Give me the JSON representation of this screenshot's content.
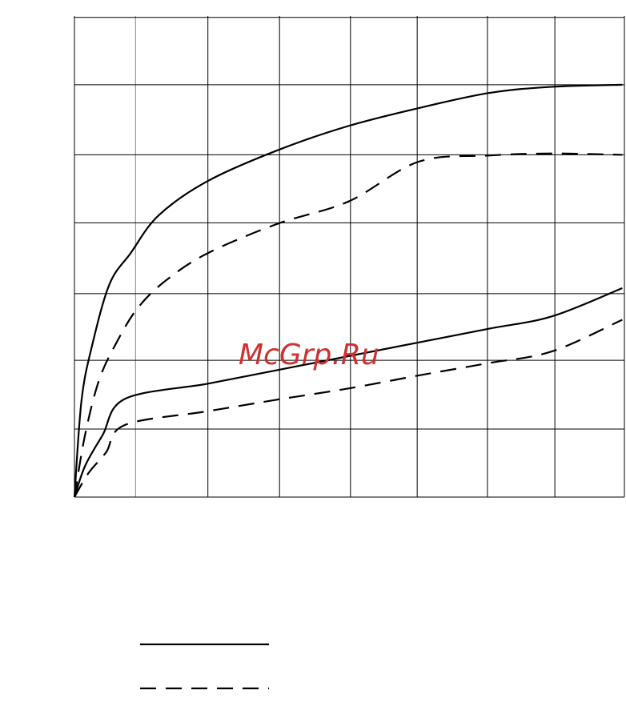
{
  "watermark": "McGrp.Ru",
  "chart_data": {
    "type": "line",
    "title": "",
    "xlabel": "",
    "ylabel": "",
    "xlim": [
      0,
      8
    ],
    "ylim": [
      0,
      7
    ],
    "x_gridlines": [
      0,
      0.87,
      1.9,
      2.92,
      3.93,
      4.88,
      5.88,
      6.84,
      7.83
    ],
    "y_gridlines": [
      0,
      0.99,
      1.99,
      2.96,
      3.99,
      4.98,
      6.0,
      6.98
    ],
    "grid": true,
    "legend": "bottom-left",
    "series": [
      {
        "style": "solid",
        "points": [
          [
            0,
            0
          ],
          [
            0.1,
            1.4
          ],
          [
            0.25,
            2.2
          ],
          [
            0.5,
            3.1
          ],
          [
            0.8,
            3.55
          ],
          [
            1.2,
            4.1
          ],
          [
            1.9,
            4.6
          ],
          [
            2.9,
            5.05
          ],
          [
            3.9,
            5.4
          ],
          [
            4.9,
            5.66
          ],
          [
            5.9,
            5.88
          ],
          [
            6.8,
            5.97
          ],
          [
            7.8,
            6.0
          ]
        ]
      },
      {
        "style": "dashed",
        "points": [
          [
            0,
            0
          ],
          [
            0.15,
            0.9
          ],
          [
            0.35,
            1.7
          ],
          [
            0.6,
            2.25
          ],
          [
            0.9,
            2.75
          ],
          [
            1.3,
            3.15
          ],
          [
            1.9,
            3.55
          ],
          [
            2.9,
            3.98
          ],
          [
            3.9,
            4.3
          ],
          [
            4.9,
            4.88
          ],
          [
            5.9,
            4.97
          ],
          [
            6.8,
            5.0
          ],
          [
            7.8,
            4.98
          ]
        ]
      },
      {
        "style": "solid",
        "points": [
          [
            0,
            0
          ],
          [
            0.15,
            0.45
          ],
          [
            0.4,
            0.9
          ],
          [
            0.72,
            1.43
          ],
          [
            1.9,
            1.65
          ],
          [
            2.9,
            1.85
          ],
          [
            3.9,
            2.05
          ],
          [
            4.9,
            2.25
          ],
          [
            5.9,
            2.45
          ],
          [
            6.8,
            2.63
          ],
          [
            7.8,
            3.04
          ]
        ]
      },
      {
        "style": "dashed",
        "points": [
          [
            0,
            0
          ],
          [
            0.2,
            0.35
          ],
          [
            0.45,
            0.65
          ],
          [
            0.72,
            1.05
          ],
          [
            1.9,
            1.25
          ],
          [
            2.9,
            1.42
          ],
          [
            3.9,
            1.58
          ],
          [
            4.9,
            1.77
          ],
          [
            5.9,
            1.95
          ],
          [
            6.8,
            2.12
          ],
          [
            7.8,
            2.58
          ]
        ]
      }
    ]
  }
}
